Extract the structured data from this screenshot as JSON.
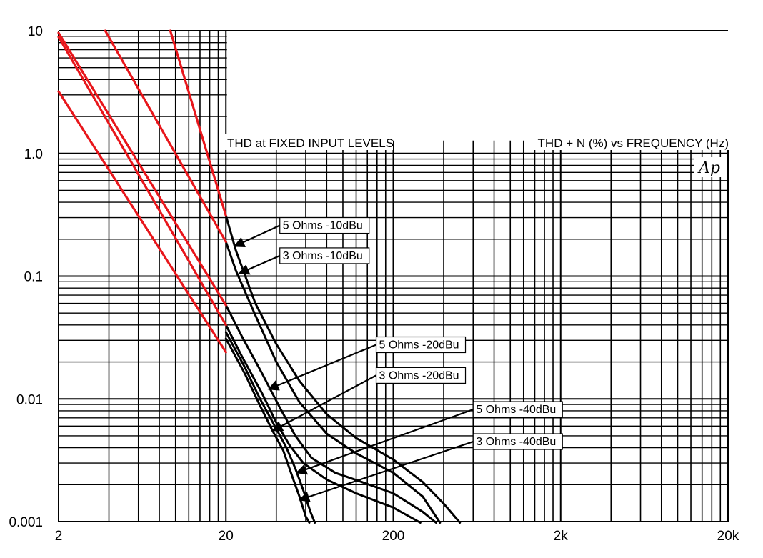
{
  "chart_data": {
    "type": "line",
    "title_left": "THD at FIXED INPUT LEVELS",
    "title_right": "THD + N (%) vs FREQUENCY (Hz)",
    "logo": "Ap",
    "x_scale": "log",
    "y_scale": "log",
    "xlim": [
      2,
      20000
    ],
    "ylim": [
      0.001,
      10
    ],
    "grid": true,
    "x_ticks": [
      {
        "value": 2,
        "label": "2"
      },
      {
        "value": 20,
        "label": "20"
      },
      {
        "value": 200,
        "label": "200"
      },
      {
        "value": 2000,
        "label": "2k"
      },
      {
        "value": 20000,
        "label": "20k"
      }
    ],
    "y_ticks": [
      {
        "value": 10,
        "label": "10"
      },
      {
        "value": 1,
        "label": "1.0"
      },
      {
        "value": 0.1,
        "label": "0.1"
      },
      {
        "value": 0.01,
        "label": "0.01"
      },
      {
        "value": 0.001,
        "label": "0.001"
      }
    ],
    "series": [
      {
        "name": "5 Ohms -10dBu",
        "color": "#000000",
        "points": [
          [
            20,
            0.31
          ],
          [
            23,
            0.16
          ],
          [
            30,
            0.06
          ],
          [
            40,
            0.028
          ],
          [
            55,
            0.014
          ],
          [
            80,
            0.0075
          ],
          [
            120,
            0.0048
          ],
          [
            200,
            0.0032
          ],
          [
            300,
            0.0021
          ],
          [
            400,
            0.0014
          ],
          [
            500,
            0.00098
          ]
        ]
      },
      {
        "name": "3 Ohms -10dBu",
        "color": "#000000",
        "points": [
          [
            20,
            0.19
          ],
          [
            23,
            0.11
          ],
          [
            30,
            0.048
          ],
          [
            40,
            0.02
          ],
          [
            55,
            0.0094
          ],
          [
            80,
            0.0052
          ],
          [
            120,
            0.0036
          ],
          [
            200,
            0.0025
          ],
          [
            300,
            0.0016
          ],
          [
            380,
            0.00098
          ]
        ]
      },
      {
        "name": "5 Ohms -20dBu",
        "color": "#000000",
        "points": [
          [
            20,
            0.058
          ],
          [
            25,
            0.032
          ],
          [
            33,
            0.016
          ],
          [
            42,
            0.0085
          ],
          [
            52,
            0.005
          ],
          [
            65,
            0.0033
          ],
          [
            90,
            0.0025
          ],
          [
            130,
            0.0021
          ],
          [
            200,
            0.0017
          ],
          [
            300,
            0.0012
          ],
          [
            360,
            0.00098
          ]
        ]
      },
      {
        "name": "3 Ohms -20dBu",
        "color": "#000000",
        "points": [
          [
            20,
            0.04
          ],
          [
            25,
            0.022
          ],
          [
            33,
            0.011
          ],
          [
            40,
            0.0064
          ],
          [
            48,
            0.0042
          ],
          [
            58,
            0.003
          ],
          [
            80,
            0.0022
          ],
          [
            120,
            0.0017
          ],
          [
            200,
            0.0013
          ],
          [
            290,
            0.00098
          ]
        ]
      },
      {
        "name": "5 Ohms -40dBu",
        "color": "#000000",
        "points": [
          [
            20,
            0.035
          ],
          [
            26,
            0.018
          ],
          [
            32,
            0.01
          ],
          [
            40,
            0.0057
          ],
          [
            46,
            0.004
          ],
          [
            52,
            0.0027
          ],
          [
            58,
            0.0018
          ],
          [
            64,
            0.0012
          ],
          [
            68,
            0.00098
          ]
        ]
      },
      {
        "name": "3 Ohms -40dBu",
        "color": "#000000",
        "points": [
          [
            20,
            0.031
          ],
          [
            26,
            0.016
          ],
          [
            32,
            0.0088
          ],
          [
            38,
            0.0055
          ],
          [
            44,
            0.0038
          ],
          [
            50,
            0.0023
          ],
          [
            55,
            0.0016
          ],
          [
            60,
            0.0011
          ],
          [
            63,
            0.00098
          ]
        ]
      },
      {
        "name": "",
        "color": "#e8161b",
        "points": [
          [
            2,
            3.2
          ],
          [
            20,
            0.024
          ]
        ]
      },
      {
        "name": "",
        "color": "#e8161b",
        "points": [
          [
            2,
            8.9
          ],
          [
            20,
            0.04
          ]
        ]
      },
      {
        "name": "",
        "color": "#e8161b",
        "points": [
          [
            3.8,
            10
          ],
          [
            20,
            0.19
          ]
        ]
      },
      {
        "name": "",
        "color": "#e8161b",
        "points": [
          [
            9.3,
            10
          ],
          [
            20,
            0.31
          ]
        ]
      },
      {
        "name": "",
        "color": "#e8161b",
        "points": [
          [
            2,
            9.6
          ],
          [
            20,
            0.058
          ]
        ]
      }
    ],
    "annotations": [
      {
        "text": "5 Ohms -10dBu",
        "anchor_series": 0,
        "target": [
          22.5,
          0.175
        ],
        "box_at": [
          42,
          0.3
        ]
      },
      {
        "text": "3 Ohms -10dBu",
        "anchor_series": 1,
        "target": [
          24,
          0.105
        ],
        "box_at": [
          42,
          0.17
        ]
      },
      {
        "text": "5 Ohms -20dBu",
        "anchor_series": 2,
        "target": [
          36,
          0.012
        ],
        "box_at": [
          158,
          0.032
        ]
      },
      {
        "text": "3 Ohms -20dBu",
        "anchor_series": 3,
        "target": [
          38,
          0.0055
        ],
        "box_at": [
          158,
          0.018
        ]
      },
      {
        "text": "5 Ohms -40dBu",
        "anchor_series": 4,
        "target": [
          53,
          0.0025
        ],
        "box_at": [
          600,
          0.0095
        ]
      },
      {
        "text": "3 Ohms -40dBu",
        "anchor_series": 5,
        "target": [
          55,
          0.0015
        ],
        "box_at": [
          600,
          0.0052
        ]
      }
    ]
  }
}
